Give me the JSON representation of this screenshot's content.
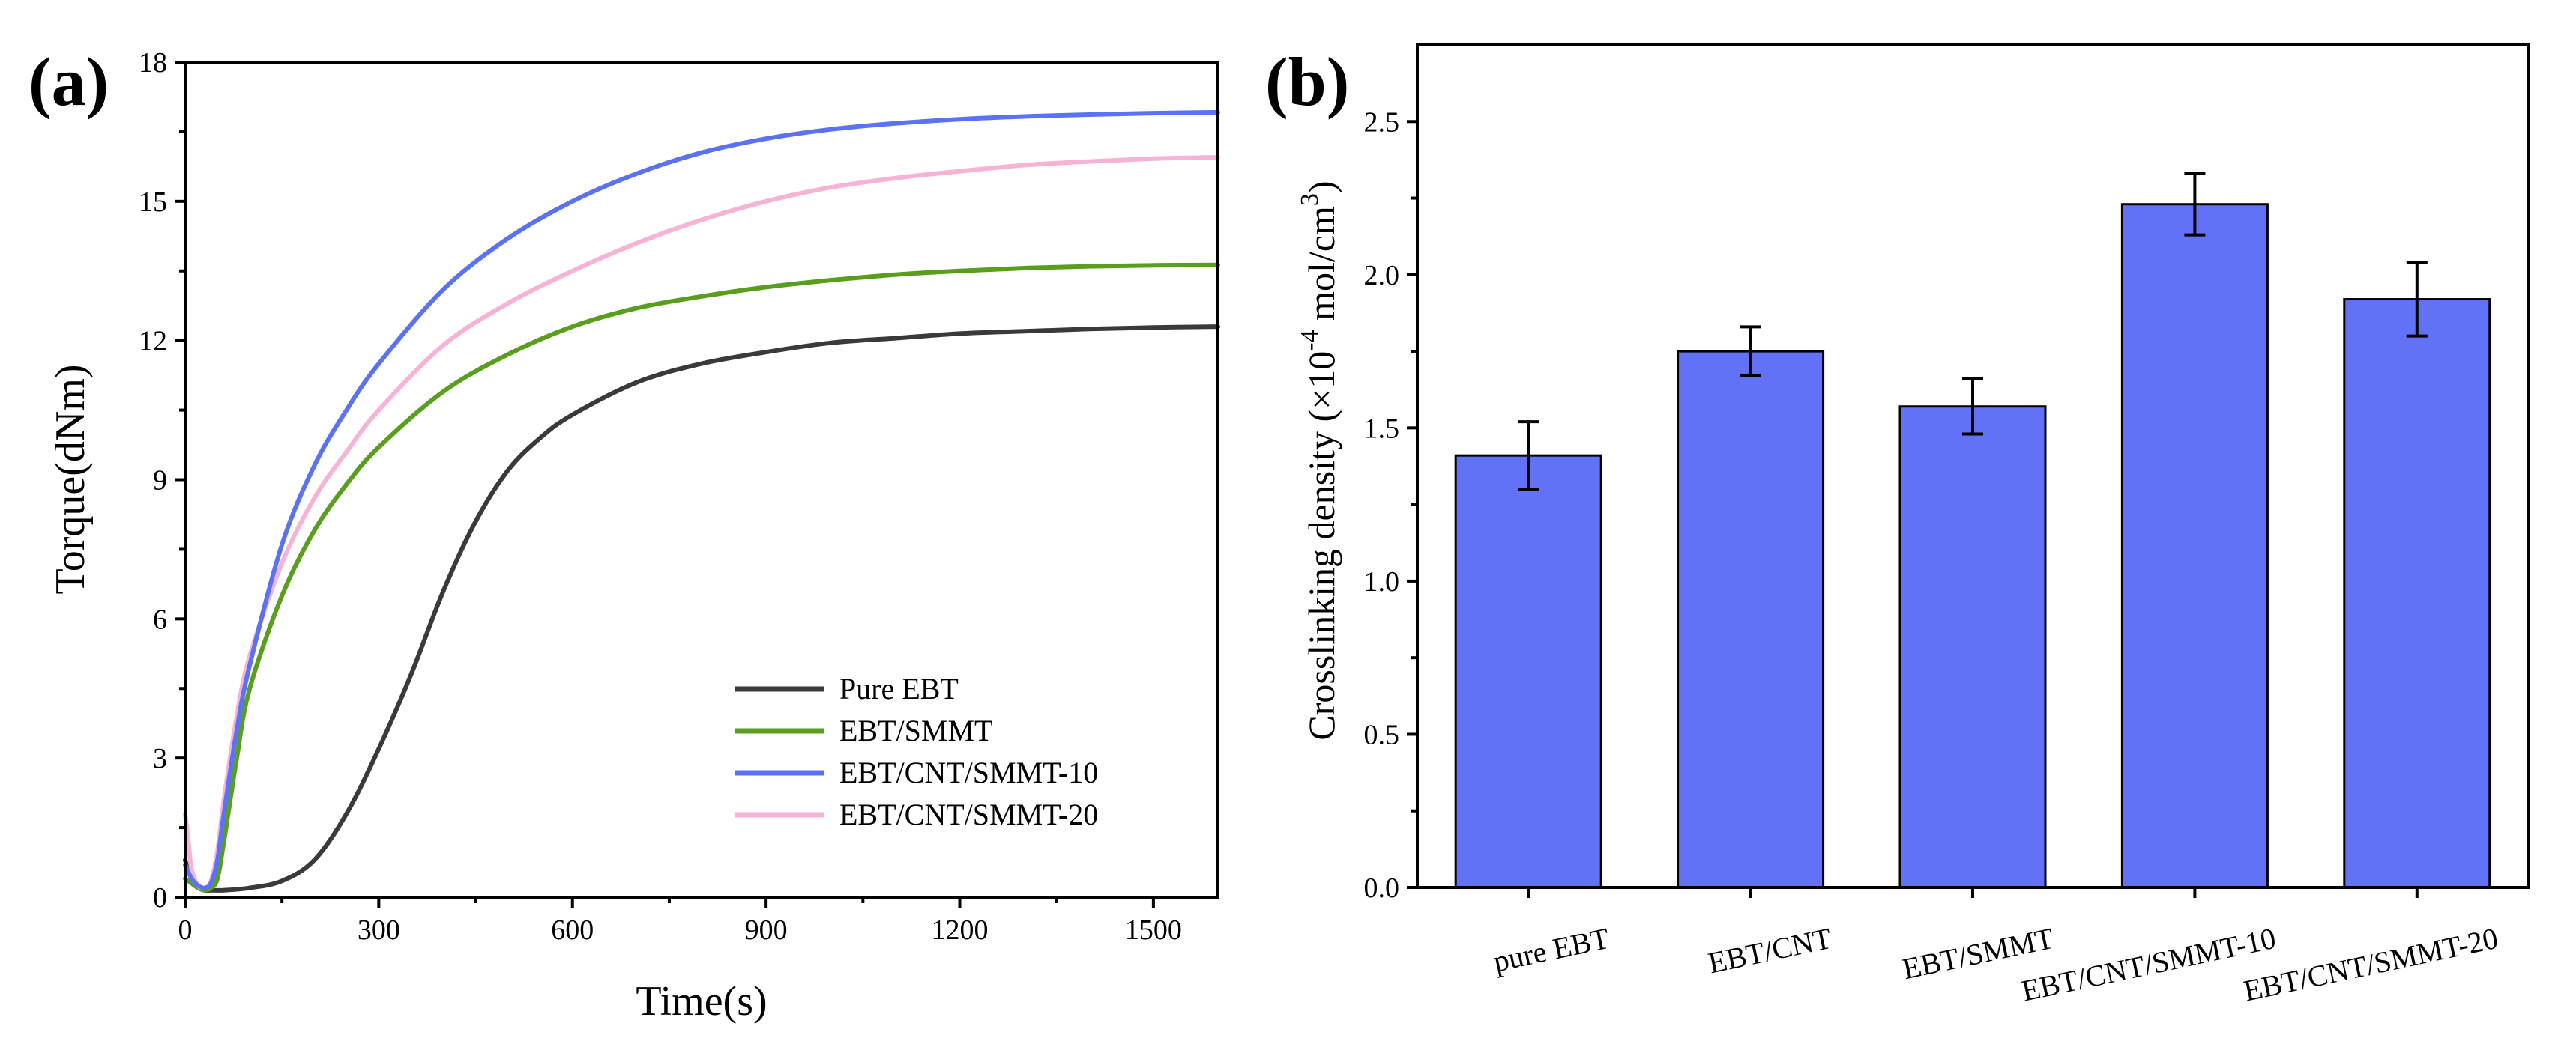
{
  "colors": {
    "pure_ebt": "#3a3a3a",
    "ebt_smmt": "#5a9e1e",
    "ebt_cnt_smmt_10": "#5c72f5",
    "ebt_cnt_smmt_20": "#f7b3d6",
    "bar_fill": "#6272f7"
  },
  "chart_data": [
    {
      "type": "line",
      "panel_label": "(a)",
      "xlabel": "Time(s)",
      "ylabel": "Torque(dNm)",
      "xlim": [
        0,
        1600
      ],
      "ylim": [
        0,
        18
      ],
      "xticks": [
        0,
        300,
        600,
        900,
        1200,
        1500
      ],
      "yticks": [
        0,
        3,
        6,
        9,
        12,
        15,
        18
      ],
      "legend_position": "bottom-right",
      "series": [
        {
          "name": "Pure EBT",
          "color_key": "pure_ebt",
          "x": [
            0,
            10,
            20,
            30,
            40,
            60,
            100,
            150,
            200,
            250,
            300,
            350,
            400,
            450,
            500,
            550,
            600,
            700,
            800,
            900,
            1000,
            1100,
            1200,
            1300,
            1400,
            1500,
            1600
          ],
          "y": [
            0.8,
            0.4,
            0.25,
            0.15,
            0.15,
            0.15,
            0.2,
            0.35,
            0.8,
            1.8,
            3.2,
            4.8,
            6.6,
            8.1,
            9.2,
            9.9,
            10.4,
            11.1,
            11.5,
            11.75,
            11.95,
            12.05,
            12.15,
            12.2,
            12.25,
            12.28,
            12.3
          ]
        },
        {
          "name": "EBT/SMMT",
          "color_key": "ebt_smmt",
          "x": [
            0,
            10,
            20,
            30,
            40,
            50,
            60,
            80,
            100,
            150,
            200,
            250,
            300,
            400,
            500,
            600,
            700,
            800,
            900,
            1000,
            1100,
            1200,
            1300,
            1400,
            1500,
            1600
          ],
          "y": [
            0.4,
            0.3,
            0.2,
            0.15,
            0.2,
            0.4,
            1.2,
            3.0,
            4.5,
            6.5,
            7.9,
            8.9,
            9.7,
            10.9,
            11.7,
            12.3,
            12.7,
            12.95,
            13.15,
            13.3,
            13.42,
            13.5,
            13.56,
            13.6,
            13.62,
            13.63
          ]
        },
        {
          "name": "EBT/CNT/SMMT-10",
          "color_key": "ebt_cnt_smmt_10",
          "x": [
            0,
            10,
            20,
            30,
            40,
            50,
            60,
            80,
            100,
            150,
            200,
            250,
            300,
            400,
            500,
            600,
            700,
            800,
            900,
            1000,
            1100,
            1200,
            1300,
            1400,
            1500,
            1600
          ],
          "y": [
            0.7,
            0.4,
            0.25,
            0.2,
            0.3,
            0.8,
            1.8,
            3.6,
            5.0,
            7.6,
            9.3,
            10.5,
            11.5,
            13.1,
            14.2,
            15.0,
            15.6,
            16.05,
            16.35,
            16.55,
            16.68,
            16.77,
            16.83,
            16.87,
            16.9,
            16.92
          ]
        },
        {
          "name": "EBT/CNT/SMMT-20",
          "color_key": "ebt_cnt_smmt_20",
          "x": [
            0,
            5,
            10,
            20,
            30,
            40,
            50,
            60,
            80,
            100,
            150,
            200,
            250,
            300,
            400,
            500,
            600,
            700,
            800,
            900,
            1000,
            1100,
            1200,
            1300,
            1400,
            1500,
            1600
          ],
          "y": [
            1.8,
            1.2,
            0.6,
            0.25,
            0.2,
            0.35,
            1.0,
            2.1,
            3.9,
            5.2,
            7.2,
            8.6,
            9.6,
            10.5,
            11.9,
            12.8,
            13.5,
            14.1,
            14.6,
            15.0,
            15.3,
            15.5,
            15.65,
            15.78,
            15.86,
            15.92,
            15.95
          ]
        }
      ]
    },
    {
      "type": "bar",
      "panel_label": "(b)",
      "ylabel_main": "Crosslinking density (×10",
      "ylabel_sup": "-4",
      "ylabel_mid": " mol/cm",
      "ylabel_sup2": "3",
      "ylabel_end": ")",
      "categories": [
        "pure EBT",
        "EBT/CNT",
        "EBT/SMMT",
        "EBT/CNT/SMMT-10",
        "EBT/CNT/SMMT-20"
      ],
      "values": [
        1.41,
        1.75,
        1.57,
        2.23,
        1.92
      ],
      "errors": [
        0.11,
        0.08,
        0.09,
        0.1,
        0.12
      ],
      "ylim": [
        0,
        2.75
      ],
      "yticks": [
        "0.0",
        "0.5",
        "1.0",
        "1.5",
        "2.0",
        "2.5"
      ]
    }
  ]
}
